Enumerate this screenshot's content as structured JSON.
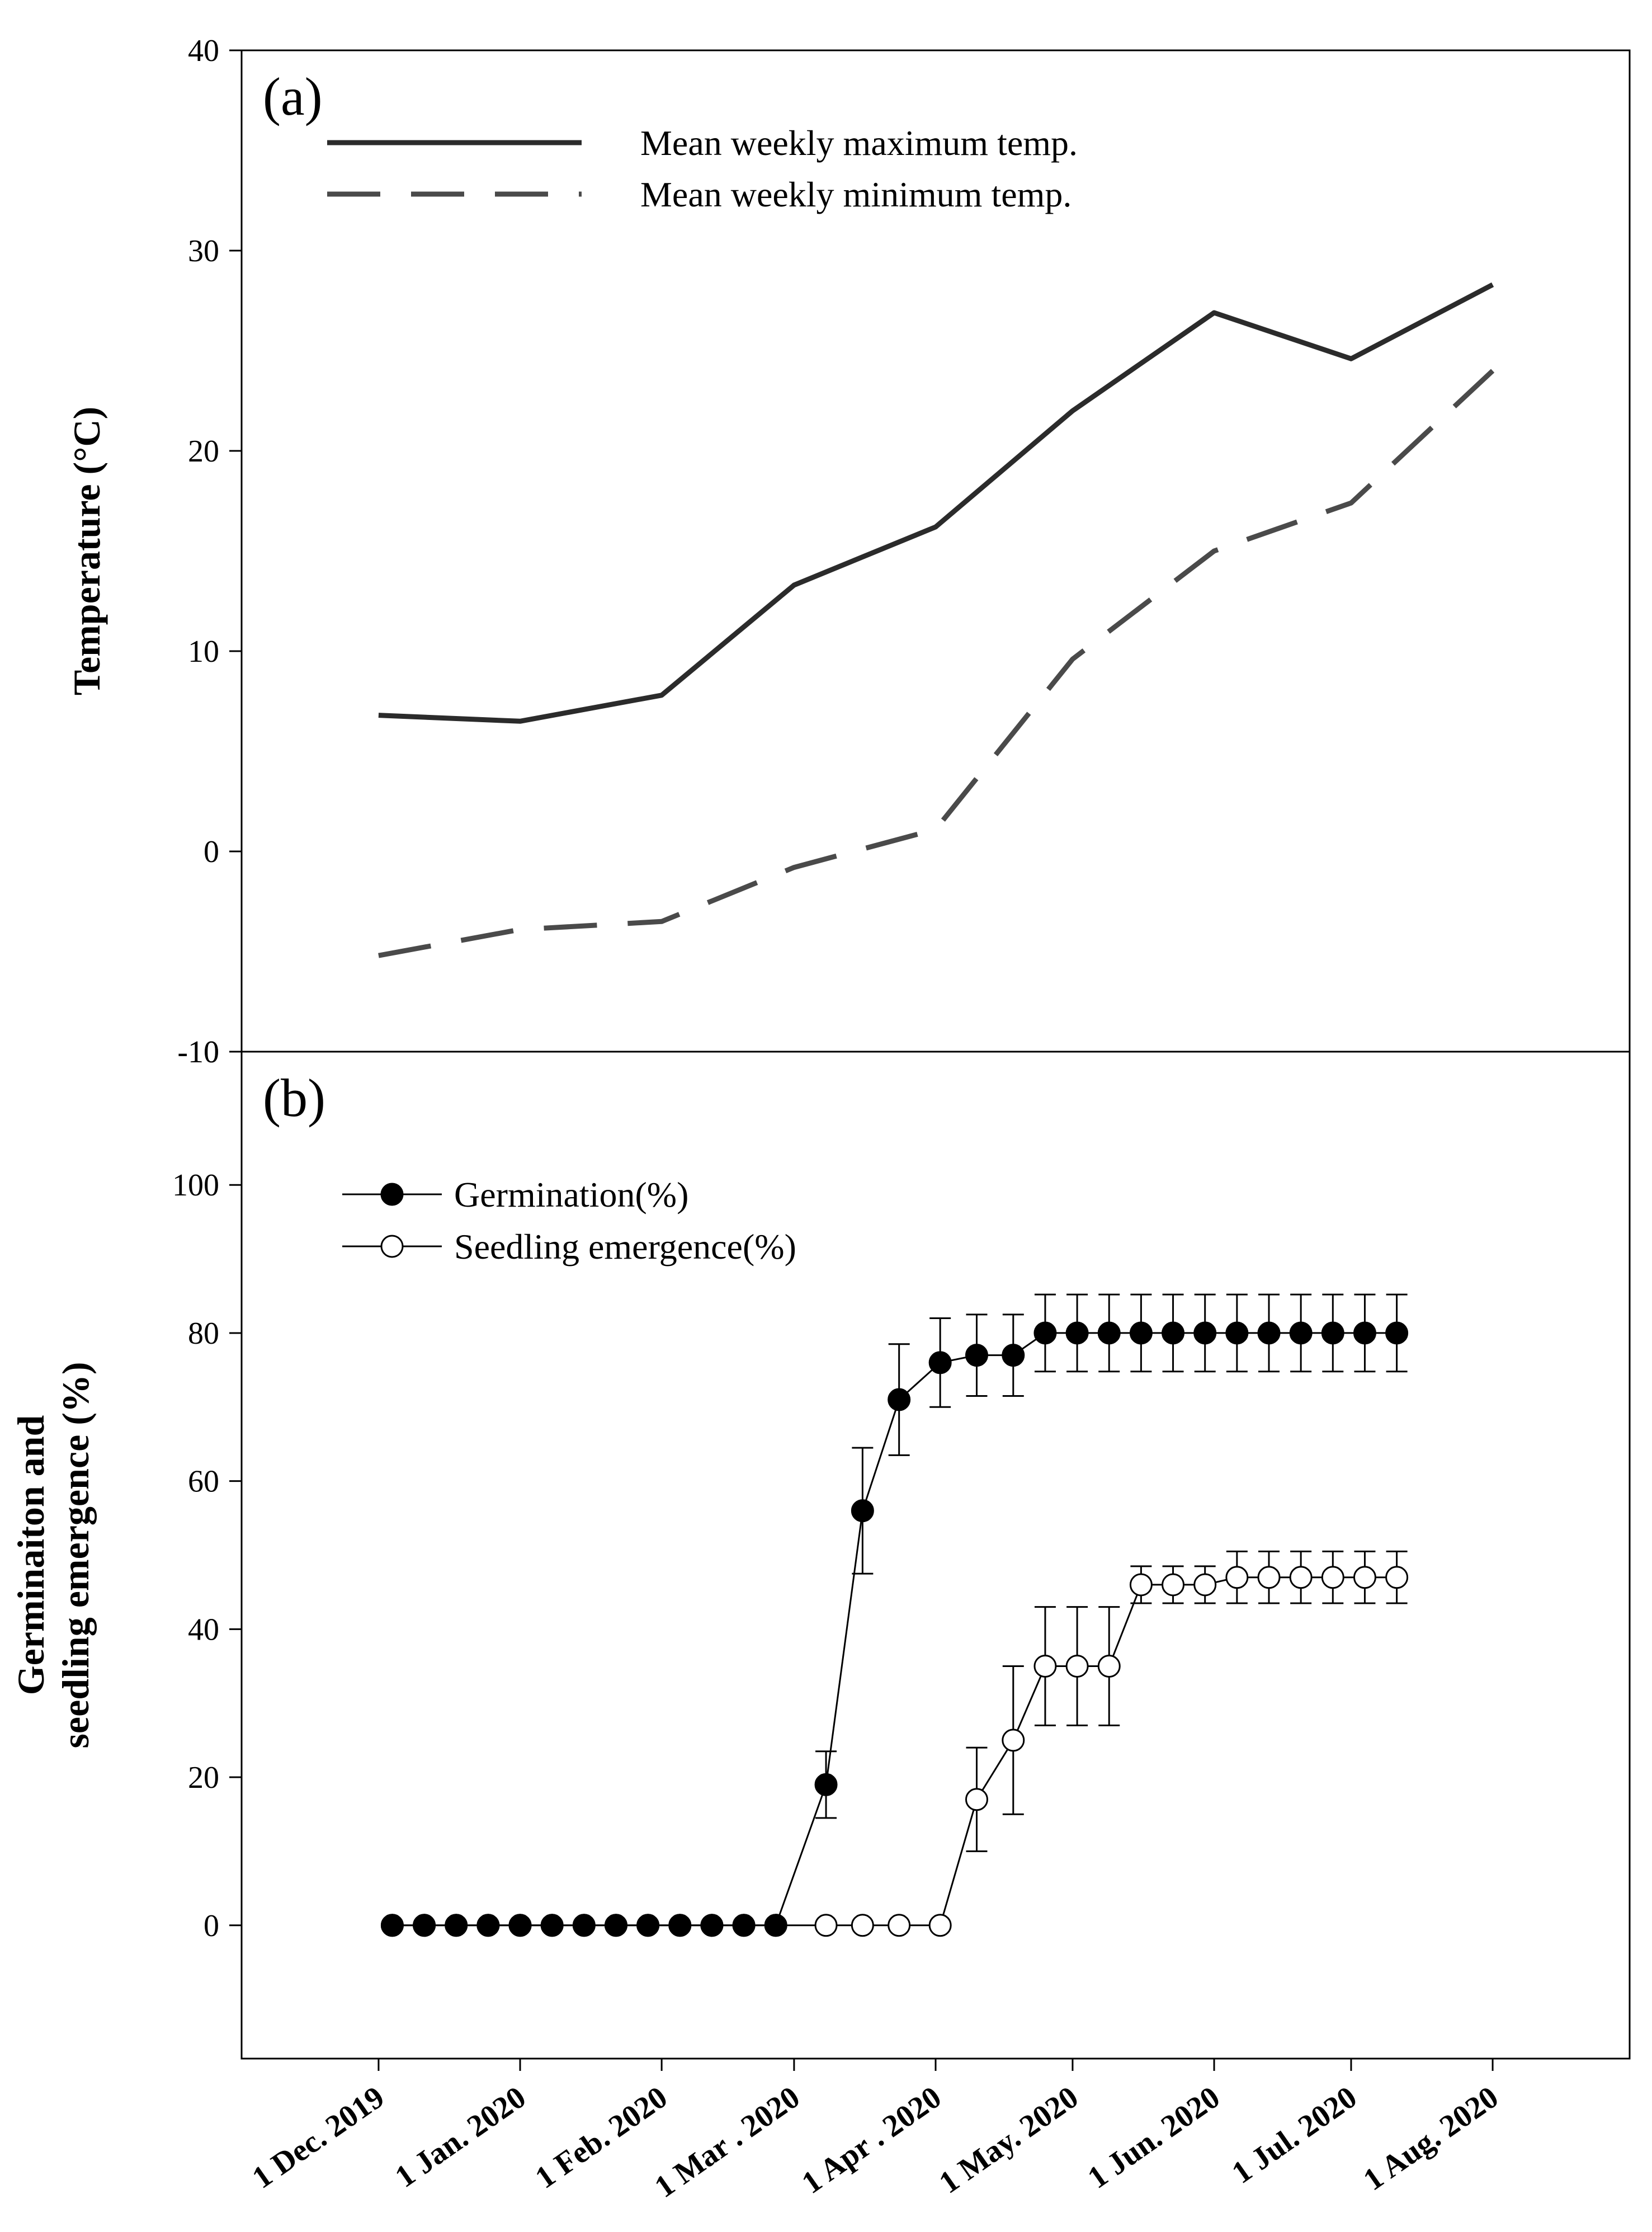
{
  "chart_data": [
    {
      "type": "line",
      "panel_label": "(a)",
      "ylabel": "Temperature (°C)",
      "ylim": [
        -10,
        40
      ],
      "yticks": [
        -10,
        0,
        10,
        20,
        30,
        40
      ],
      "series": [
        {
          "name": "Mean weekly maximum temp.",
          "style": "solid",
          "color": "#2b2b2b",
          "points": [
            {
              "x": "2019-12-01",
              "y": 6.8
            },
            {
              "x": "2020-01-01",
              "y": 6.5
            },
            {
              "x": "2020-02-01",
              "y": 7.8
            },
            {
              "x": "2020-03-01",
              "y": 13.3
            },
            {
              "x": "2020-04-01",
              "y": 16.2
            },
            {
              "x": "2020-05-01",
              "y": 22.0
            },
            {
              "x": "2020-06-01",
              "y": 26.9
            },
            {
              "x": "2020-07-01",
              "y": 24.6
            },
            {
              "x": "2020-08-01",
              "y": 28.3
            }
          ]
        },
        {
          "name": "Mean weekly minimum temp.",
          "style": "dashed",
          "color": "#4a4a4a",
          "points": [
            {
              "x": "2019-12-01",
              "y": -5.2
            },
            {
              "x": "2020-01-01",
              "y": -3.9
            },
            {
              "x": "2020-02-01",
              "y": -3.5
            },
            {
              "x": "2020-03-01",
              "y": -0.8
            },
            {
              "x": "2020-04-01",
              "y": 1.1
            },
            {
              "x": "2020-05-01",
              "y": 9.6
            },
            {
              "x": "2020-06-01",
              "y": 15.0
            },
            {
              "x": "2020-07-01",
              "y": 17.4
            },
            {
              "x": "2020-08-01",
              "y": 24.0
            }
          ]
        }
      ]
    },
    {
      "type": "line",
      "panel_label": "(b)",
      "ylabel_lines": [
        "Germinaiton and",
        "seedling emergence (%)"
      ],
      "ylim": [
        -18,
        118
      ],
      "yticks": [
        0,
        20,
        40,
        60,
        80,
        100
      ],
      "series": [
        {
          "name": "Germination(%)",
          "marker": "filled-circle",
          "color": "#000000",
          "points": [
            {
              "x": "2019-12-04",
              "y": 0
            },
            {
              "x": "2019-12-11",
              "y": 0
            },
            {
              "x": "2019-12-18",
              "y": 0
            },
            {
              "x": "2019-12-25",
              "y": 0
            },
            {
              "x": "2020-01-01",
              "y": 0
            },
            {
              "x": "2020-01-08",
              "y": 0
            },
            {
              "x": "2020-01-15",
              "y": 0
            },
            {
              "x": "2020-01-22",
              "y": 0
            },
            {
              "x": "2020-01-29",
              "y": 0
            },
            {
              "x": "2020-02-05",
              "y": 0
            },
            {
              "x": "2020-02-12",
              "y": 0
            },
            {
              "x": "2020-02-19",
              "y": 0
            },
            {
              "x": "2020-02-26",
              "y": 0
            },
            {
              "x": "2020-03-08",
              "y": 19,
              "err": 4.5
            },
            {
              "x": "2020-03-16",
              "y": 56,
              "err": 8.5
            },
            {
              "x": "2020-03-24",
              "y": 71,
              "err": 7.5
            },
            {
              "x": "2020-04-02",
              "y": 76,
              "err": 6
            },
            {
              "x": "2020-04-10",
              "y": 77,
              "err": 5.5
            },
            {
              "x": "2020-04-18",
              "y": 77,
              "err": 5.5
            },
            {
              "x": "2020-04-25",
              "y": 80,
              "err": 5.2
            },
            {
              "x": "2020-05-02",
              "y": 80,
              "err": 5.2
            },
            {
              "x": "2020-05-09",
              "y": 80,
              "err": 5.2
            },
            {
              "x": "2020-05-16",
              "y": 80,
              "err": 5.2
            },
            {
              "x": "2020-05-23",
              "y": 80,
              "err": 5.2
            },
            {
              "x": "2020-05-30",
              "y": 80,
              "err": 5.2
            },
            {
              "x": "2020-06-06",
              "y": 80,
              "err": 5.2
            },
            {
              "x": "2020-06-13",
              "y": 80,
              "err": 5.2
            },
            {
              "x": "2020-06-20",
              "y": 80,
              "err": 5.2
            },
            {
              "x": "2020-06-27",
              "y": 80,
              "err": 5.2
            },
            {
              "x": "2020-07-04",
              "y": 80,
              "err": 5.2
            },
            {
              "x": "2020-07-11",
              "y": 80,
              "err": 5.2
            }
          ]
        },
        {
          "name": "Seedling emergence(%)",
          "marker": "open-circle",
          "color": "#000000",
          "points": [
            {
              "x": "2019-12-04",
              "y": 0
            },
            {
              "x": "2019-12-11",
              "y": 0
            },
            {
              "x": "2019-12-18",
              "y": 0
            },
            {
              "x": "2019-12-25",
              "y": 0
            },
            {
              "x": "2020-01-01",
              "y": 0
            },
            {
              "x": "2020-01-08",
              "y": 0
            },
            {
              "x": "2020-01-15",
              "y": 0
            },
            {
              "x": "2020-01-22",
              "y": 0
            },
            {
              "x": "2020-01-29",
              "y": 0
            },
            {
              "x": "2020-02-05",
              "y": 0
            },
            {
              "x": "2020-02-12",
              "y": 0
            },
            {
              "x": "2020-02-19",
              "y": 0
            },
            {
              "x": "2020-02-26",
              "y": 0
            },
            {
              "x": "2020-03-08",
              "y": 0
            },
            {
              "x": "2020-03-16",
              "y": 0
            },
            {
              "x": "2020-03-24",
              "y": 0
            },
            {
              "x": "2020-04-02",
              "y": 0
            },
            {
              "x": "2020-04-10",
              "y": 17,
              "err": 7
            },
            {
              "x": "2020-04-18",
              "y": 25,
              "err": 10
            },
            {
              "x": "2020-04-25",
              "y": 35,
              "err": 8
            },
            {
              "x": "2020-05-02",
              "y": 35,
              "err": 8
            },
            {
              "x": "2020-05-09",
              "y": 35,
              "err": 8
            },
            {
              "x": "2020-05-16",
              "y": 46,
              "err": 2.5
            },
            {
              "x": "2020-05-23",
              "y": 46,
              "err": 2.5
            },
            {
              "x": "2020-05-30",
              "y": 46,
              "err": 2.5
            },
            {
              "x": "2020-06-06",
              "y": 47,
              "err": 3.5
            },
            {
              "x": "2020-06-13",
              "y": 47,
              "err": 3.5
            },
            {
              "x": "2020-06-20",
              "y": 47,
              "err": 3.5
            },
            {
              "x": "2020-06-27",
              "y": 47,
              "err": 3.5
            },
            {
              "x": "2020-07-04",
              "y": 47,
              "err": 3.5
            },
            {
              "x": "2020-07-11",
              "y": 47,
              "err": 3.5
            }
          ]
        }
      ]
    }
  ],
  "x_axis": {
    "xlim": [
      "2019-11-01",
      "2020-08-31"
    ],
    "tick_dates": [
      "2019-12-01",
      "2020-01-01",
      "2020-02-01",
      "2020-03-01",
      "2020-04-01",
      "2020-05-01",
      "2020-06-01",
      "2020-07-01",
      "2020-08-01"
    ],
    "tick_labels": [
      "1 Dec. 2019",
      "1 Jan. 2020",
      "1 Feb. 2020",
      "1 Mar . 2020",
      "1 Apr . 2020",
      "1 May. 2020",
      "1 Jun. 2020",
      "1 Jul. 2020",
      "1 Aug. 2020"
    ]
  }
}
